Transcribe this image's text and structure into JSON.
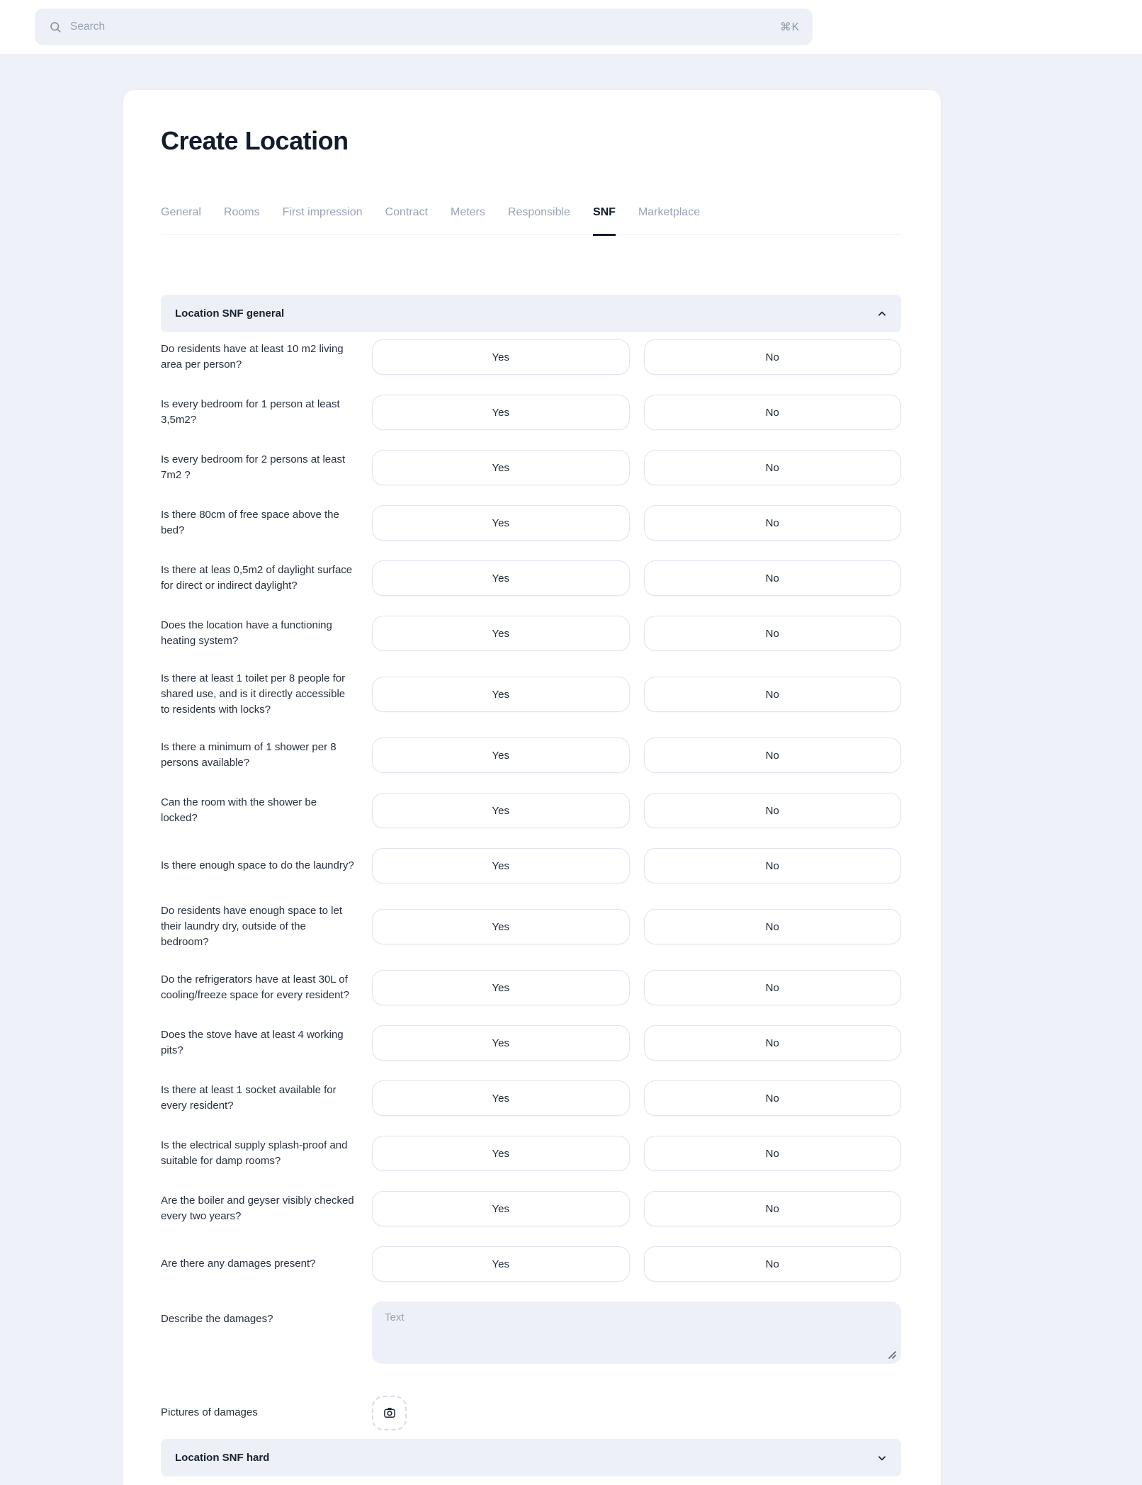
{
  "search": {
    "placeholder": "Search",
    "shortcut": "⌘K"
  },
  "page": {
    "title": "Create Location"
  },
  "tabs": [
    {
      "id": "general",
      "label": "General",
      "active": false
    },
    {
      "id": "rooms",
      "label": "Rooms",
      "active": false
    },
    {
      "id": "first-impression",
      "label": "First impression",
      "active": false
    },
    {
      "id": "contract",
      "label": "Contract",
      "active": false
    },
    {
      "id": "meters",
      "label": "Meters",
      "active": false
    },
    {
      "id": "responsible",
      "label": "Responsible",
      "active": false
    },
    {
      "id": "snf",
      "label": "SNF",
      "active": true
    },
    {
      "id": "marketplace",
      "label": "Marketplace",
      "active": false
    }
  ],
  "sections": {
    "general": {
      "title": "Location SNF general",
      "state": "expanded"
    },
    "hard": {
      "title": "Location SNF hard",
      "state": "collapsed"
    }
  },
  "answers": {
    "yes": "Yes",
    "no": "No"
  },
  "questions": [
    "Do residents have at least 10 m2 living area per person?",
    "Is every bedroom for 1 person at least 3,5m2?",
    "Is every bedroom for 2 persons at least 7m2 ?",
    "Is there 80cm of free space above the bed?",
    "Is there at leas 0,5m2 of daylight surface for direct or indirect daylight?",
    "Does the location have a functioning heating system?",
    "Is there at least 1 toilet per 8 people for shared use, and is it directly accessible to residents with locks?",
    "Is there a minimum of 1 shower per 8 persons available?",
    "Can the room with the shower be locked?",
    "Is there enough space to do the laundry?",
    "Do residents have enough space to let their laundry dry, outside of the bedroom?",
    "Do the refrigerators have at least 30L of cooling/freeze space for every resident?",
    "Does the stove have at least 4 working pits?",
    "Is there at least 1 socket available for every resident?",
    "Is the electrical supply splash-proof and suitable for damp rooms?",
    "Are the boiler and geyser visibly checked every two years?",
    "Are there any damages present?"
  ],
  "damage_description": {
    "label": "Describe the damages?",
    "placeholder": "Text"
  },
  "damage_pictures": {
    "label": "Pictures of damages"
  },
  "icons": {
    "search": "magnifier",
    "collapse": "chevron-up",
    "expand": "chevron-down",
    "upload": "camera",
    "resize": "diagonal-grip"
  },
  "colors": {
    "page_bg": "#eef1f7",
    "card_bg": "#ffffff",
    "field_bg": "#edf1f7",
    "border": "#dfe4ed",
    "text_dark": "#131c2e",
    "text_muted": "#99a3b5"
  }
}
